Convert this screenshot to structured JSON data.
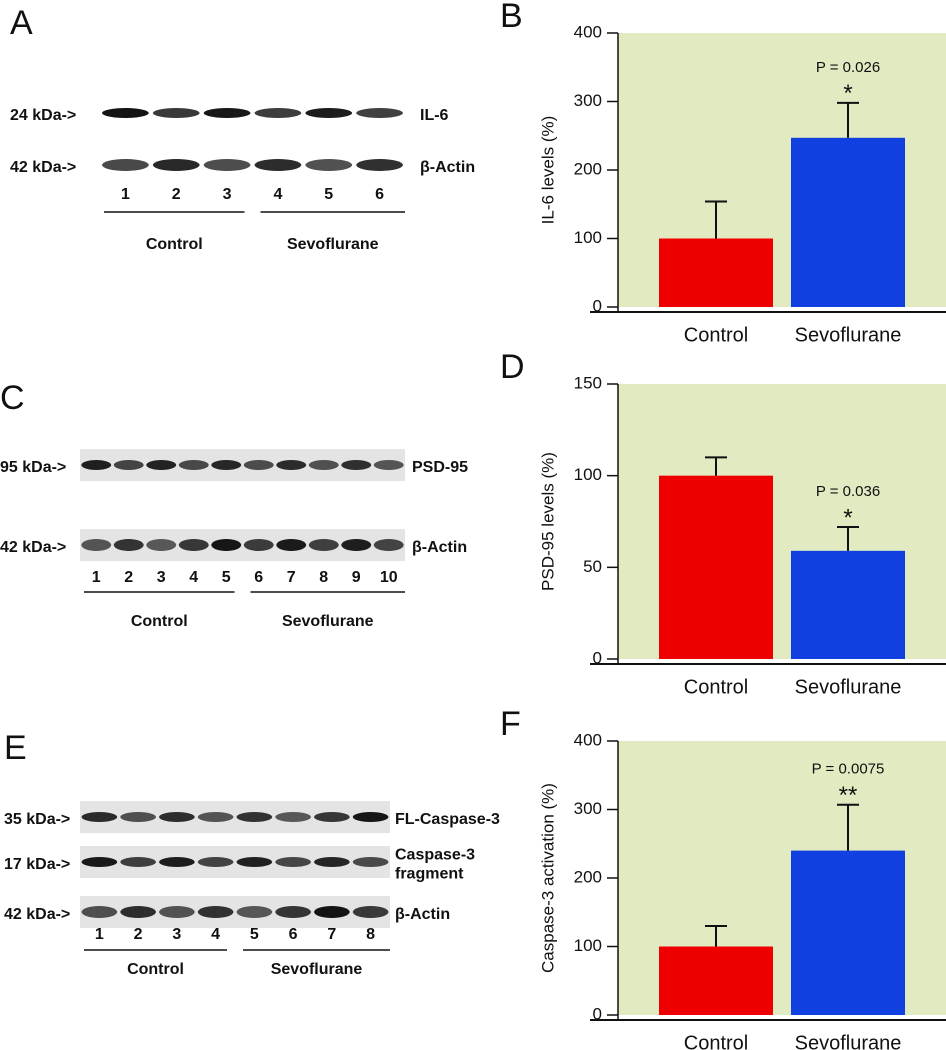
{
  "chart_data": [
    {
      "type": "bar",
      "panel": "B",
      "ylabel": "IL-6 levels (%)",
      "categories": [
        "Control",
        "Sevoflurane"
      ],
      "values": [
        100,
        247
      ],
      "errors": [
        54,
        51
      ],
      "colors": [
        "#ee0000",
        "#1040e0"
      ],
      "background": "#e1eac0",
      "annotation": "P = 0.026",
      "significance": "*",
      "ylim": [
        0,
        400
      ],
      "yticks": [
        0,
        100,
        200,
        300,
        400
      ]
    },
    {
      "type": "bar",
      "panel": "D",
      "ylabel": "PSD-95 levels (%)",
      "categories": [
        "Control",
        "Sevoflurane"
      ],
      "values": [
        100,
        59
      ],
      "errors": [
        10,
        13
      ],
      "colors": [
        "#ee0000",
        "#1040e0"
      ],
      "background": "#e1eac0",
      "annotation": "P = 0.036",
      "significance": "*",
      "ylim": [
        0,
        150
      ],
      "yticks": [
        0,
        50,
        100,
        150
      ]
    },
    {
      "type": "bar",
      "panel": "F",
      "ylabel": "Caspase-3 activation (%)",
      "categories": [
        "Control",
        "Sevoflurane"
      ],
      "values": [
        100,
        240
      ],
      "errors": [
        30,
        67
      ],
      "colors": [
        "#ee0000",
        "#1040e0"
      ],
      "background": "#e1eac0",
      "annotation": "P = 0.0075",
      "significance": "**",
      "ylim": [
        0,
        400
      ],
      "yticks": [
        0,
        100,
        200,
        300,
        400
      ]
    }
  ],
  "blots": [
    {
      "panel": "A",
      "markers": [
        {
          "label": "24 kDa->",
          "protein": [
            "IL-6"
          ]
        },
        {
          "label": "42 kDa->",
          "protein": [
            "β-Actin"
          ]
        }
      ],
      "lanes": [
        1,
        2,
        3,
        4,
        5,
        6
      ],
      "groups": [
        "Control",
        "Sevoflurane"
      ]
    },
    {
      "panel": "C",
      "markers": [
        {
          "label": "95 kDa->",
          "protein": [
            "PSD-95"
          ]
        },
        {
          "label": "42 kDa->",
          "protein": [
            "β-Actin"
          ]
        }
      ],
      "lanes": [
        1,
        2,
        3,
        4,
        5,
        6,
        7,
        8,
        9,
        10
      ],
      "groups": [
        "Control",
        "Sevoflurane"
      ]
    },
    {
      "panel": "E",
      "markers": [
        {
          "label": "35 kDa->",
          "protein": [
            "FL-Caspase-3"
          ]
        },
        {
          "label": "17 kDa->",
          "protein": [
            "Caspase-3",
            "fragment"
          ]
        },
        {
          "label": "42 kDa->",
          "protein": [
            "β-Actin"
          ]
        }
      ],
      "lanes": [
        1,
        2,
        3,
        4,
        5,
        6,
        7,
        8
      ],
      "groups": [
        "Control",
        "Sevoflurane"
      ]
    }
  ]
}
